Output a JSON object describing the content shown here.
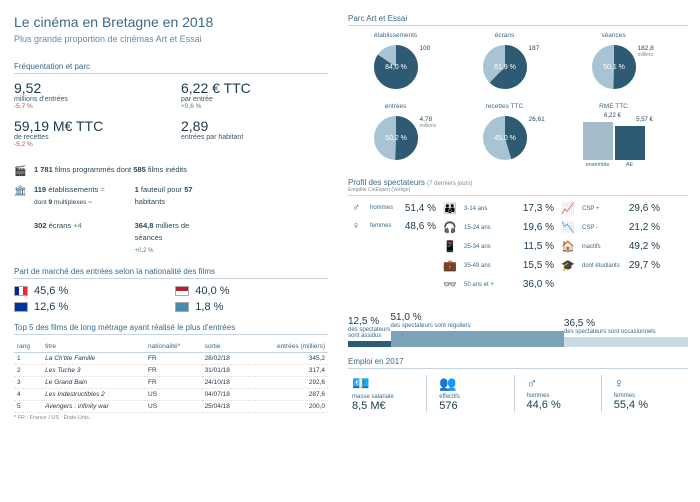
{
  "colors": {
    "accent": "#3a6a8a",
    "dark_slice": "#2e5a74",
    "light_slice": "#a8c4d4",
    "bar_mid": "#7aa3ba",
    "bar_light": "#c8dae4",
    "neg": "#c0504d",
    "pos": "#4a8a5a"
  },
  "title": "Le cinéma en Bretagne en 2018",
  "subtitle": "Plus grande proportion de cinémas Art et Essai",
  "freq": {
    "label": "Fréquentation et parc",
    "items": [
      {
        "num": "9,52",
        "label": "millions d'entrées",
        "change": "-5,7 %",
        "dir": "neg"
      },
      {
        "num": "6,22 € TTC",
        "label": "par entrée",
        "change": "+0,6 %",
        "dir": "pos"
      },
      {
        "num": "59,19 M€ TTC",
        "label": "de recettes",
        "change": "-5,2 %",
        "dir": "neg"
      },
      {
        "num": "2,89",
        "label": "entrées par habitant",
        "change": "",
        "dir": ""
      }
    ],
    "facts": [
      {
        "icon": "🎬",
        "html": "1 781 films programmés dont 585 films inédits"
      },
      {
        "icon": "🏛",
        "a": "119 établissements =",
        "asub": "dont 9 multiplexes =",
        "b": "1 fauteuil pour 57 habitants"
      },
      {
        "icon": "",
        "a": "302 écrans +4",
        "b": "364,8 milliers de séances",
        "bsub": "+0,2 %"
      }
    ]
  },
  "nat": {
    "label": "Part de marché des entrées selon la nationalité des films",
    "items": [
      {
        "flag": "fr",
        "val": "45,6 %"
      },
      {
        "flag": "us",
        "val": "40,0 %"
      },
      {
        "flag": "eu",
        "val": "12,6 %"
      },
      {
        "flag": "world",
        "val": "1,8 %"
      }
    ]
  },
  "top5": {
    "label": "Top 5 des films de long métrage ayant réalisé le plus d'entrées",
    "cols": [
      "rang",
      "titre",
      "nationalité*",
      "sortie",
      "entrées (milliers)"
    ],
    "rows": [
      [
        "1",
        "La Ch'tite Famille",
        "FR",
        "28/02/18",
        "345,2"
      ],
      [
        "2",
        "Les Tuche 3",
        "FR",
        "31/01/18",
        "317,4"
      ],
      [
        "3",
        "Le Grand Bain",
        "FR",
        "24/10/18",
        "292,6"
      ],
      [
        "4",
        "Les Indestructibles 2",
        "US",
        "04/07/18",
        "287,6"
      ],
      [
        "5",
        "Avengers : infinity war",
        "US",
        "25/04/18",
        "200,0"
      ]
    ],
    "footnote": "* FR : France / US : États-Unis."
  },
  "parc": {
    "label": "Parc Art et Essai",
    "pies": [
      {
        "title": "établissements",
        "pct": 84.0,
        "val": "100",
        "text": "84,0 %"
      },
      {
        "title": "écrans",
        "pct": 61.9,
        "val": "187",
        "text": "61,9 %"
      },
      {
        "title": "séances",
        "pct": 50.1,
        "val": "182,8",
        "sub": "milliers",
        "text": "50,1 %"
      },
      {
        "title": "entrées",
        "pct": 50.2,
        "val": "4,78",
        "sub": "millions",
        "text": "50,2 %"
      },
      {
        "title": "recettes TTC",
        "pct": 45.0,
        "val": "26,61",
        "text": "45,0 %"
      }
    ],
    "rme": {
      "title": "RME TTC",
      "bars": [
        {
          "val": "6,22 €",
          "h": 38,
          "color": "#a4bccc",
          "label": "ensemble"
        },
        {
          "val": "5,57 €",
          "h": 34,
          "color": "#2e5a74",
          "label": "AE"
        }
      ]
    }
  },
  "profil": {
    "label": "Profil des spectateurs",
    "sub": "(7 derniers jours)",
    "note": "Enquête CinExpert (Vertigo)",
    "gender": [
      {
        "icon": "♂",
        "label": "hommes",
        "val": "51,4 %"
      },
      {
        "icon": "♀",
        "label": "femmes",
        "val": "48,6 %"
      }
    ],
    "age": [
      {
        "icon": "👪",
        "label": "3-14 ans",
        "val": "17,3 %"
      },
      {
        "icon": "🎧",
        "label": "15-24 ans",
        "val": "19,6 %"
      },
      {
        "icon": "📱",
        "label": "25-34 ans",
        "val": "11,5 %"
      },
      {
        "icon": "💼",
        "label": "35-49 ans",
        "val": "15,5 %"
      },
      {
        "icon": "👓",
        "label": "50 ans et +",
        "val": "36,0 %"
      }
    ],
    "csp": [
      {
        "icon": "📈",
        "label": "CSP +",
        "val": "29,6 %"
      },
      {
        "icon": "📉",
        "label": "CSP -",
        "val": "21,2 %"
      },
      {
        "icon": "🏠",
        "label": "inactifs",
        "val": "49,2 %"
      },
      {
        "icon": "🎓",
        "label": "dont étudiants",
        "val": "29,7 %"
      }
    ]
  },
  "assid": {
    "segs": [
      {
        "val": "12,5 %",
        "label": "des spectateurs sont assidus",
        "w": 12.5,
        "h": 6,
        "color": "#2e5a74"
      },
      {
        "val": "51,0 %",
        "label": "des spectateurs sont réguliers",
        "w": 51.0,
        "h": 16,
        "color": "#7aa3ba"
      },
      {
        "val": "36,5 %",
        "label": "des spectateurs sont occasionnels",
        "w": 36.5,
        "h": 10,
        "color": "#c8dae4"
      }
    ]
  },
  "emploi": {
    "label": "Emploi en 2017",
    "items": [
      {
        "icon": "💶",
        "label": "masse salariale",
        "val": "8,5 M€"
      },
      {
        "icon": "👥",
        "label": "effectifs",
        "val": "576"
      },
      {
        "icon": "♂",
        "label": "hommes",
        "val": "44,6 %"
      },
      {
        "icon": "♀",
        "label": "femmes",
        "val": "55,4 %"
      }
    ]
  }
}
